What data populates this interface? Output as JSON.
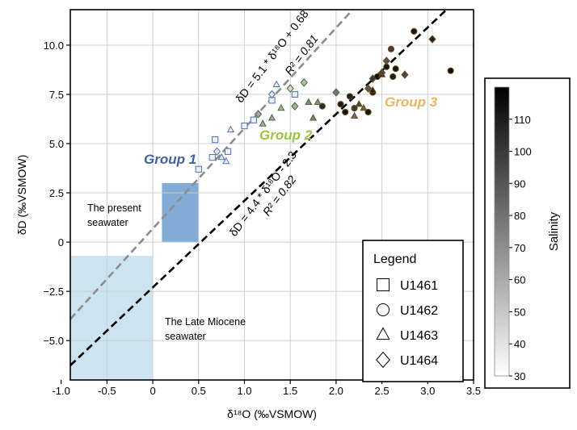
{
  "chart_data": {
    "type": "scatter",
    "xlabel": "δ¹⁸O (‰VSMOW)",
    "ylabel": "δD (‰VSMOW)",
    "xlim": [
      -0.9,
      3.5
    ],
    "ylim": [
      -7.0,
      11.8
    ],
    "x_ticks": [
      -1.0,
      -0.5,
      0.0,
      0.5,
      1.0,
      1.5,
      2.0,
      2.5,
      3.0,
      3.5
    ],
    "x_tick_labels": [
      "-1.0",
      "-0.5",
      "0",
      "0.5",
      "1.0",
      "1.5",
      "2.0",
      "2.5",
      "3.0",
      "3.5"
    ],
    "y_ticks": [
      -5.0,
      -2.5,
      0.0,
      2.5,
      5.0,
      7.5,
      10.0
    ],
    "y_tick_labels": [
      "−5.0",
      "−2.5",
      "0",
      "2.5",
      "5.0",
      "7.5",
      "10.0"
    ],
    "grid": true,
    "lines": [
      {
        "slope": 5.1,
        "intercept": 0.68,
        "style": "dashed",
        "color": "#8c8c8c",
        "equation": "δD = 5.1 * δ¹⁸O + 0.68",
        "r2": "R² = 0.81"
      },
      {
        "slope": 4.4,
        "intercept": -2.3,
        "style": "dashed",
        "color": "#000000",
        "equation": "δD = 4.4 * δ¹⁸O - 2.3",
        "r2": "R² = 0.82"
      }
    ],
    "regions": [
      {
        "label": "The present seawater",
        "label_lines": [
          "The present",
          "seawater"
        ],
        "x": [
          0.1,
          0.5
        ],
        "y": [
          0.0,
          3.0
        ],
        "color": "#7ba6d6"
      },
      {
        "label": "The Late Miocene seawater",
        "label_lines": [
          "The Late Miocene",
          "seawater"
        ],
        "x": [
          -0.9,
          0.0
        ],
        "y": [
          -7.0,
          -0.7
        ],
        "color": "#c6e0ee"
      }
    ],
    "group_labels": [
      {
        "text": "Group 1",
        "color": "#3f5fa8"
      },
      {
        "text": "Group 2",
        "color": "#9bc53d"
      },
      {
        "text": "Group 3",
        "color": "#eeb35e"
      }
    ],
    "legend": {
      "title": "Legend",
      "placement": "bottom-right",
      "entries": [
        {
          "marker": "square",
          "label": "U1461"
        },
        {
          "marker": "circle",
          "label": "U1462"
        },
        {
          "marker": "triangle",
          "label": "U1463"
        },
        {
          "marker": "diamond",
          "label": "U1464"
        }
      ]
    },
    "colorbar": {
      "label": "Salinity",
      "min": 30,
      "max": 120,
      "ticks": [
        30,
        40,
        50,
        60,
        70,
        80,
        90,
        100,
        110
      ],
      "colors": {
        "low": "#ffffff",
        "high": "#000000"
      }
    },
    "series": [
      {
        "name": "U1461",
        "marker": "square",
        "points": [
          [
            0.5,
            3.7,
            35
          ],
          [
            0.65,
            4.3,
            35
          ],
          [
            0.68,
            5.2,
            35
          ],
          [
            0.82,
            4.6,
            35
          ],
          [
            1.0,
            5.9,
            35
          ],
          [
            1.1,
            6.2,
            35
          ],
          [
            1.3,
            7.2,
            35
          ],
          [
            1.55,
            7.5,
            38
          ]
        ]
      },
      {
        "name": "U1462",
        "marker": "circle",
        "points": [
          [
            1.85,
            6.9,
            105
          ],
          [
            2.05,
            7.0,
            110
          ],
          [
            2.1,
            6.6,
            112
          ],
          [
            2.15,
            7.4,
            108
          ],
          [
            2.2,
            6.8,
            100
          ],
          [
            2.35,
            6.6,
            112
          ],
          [
            2.4,
            7.6,
            110
          ],
          [
            2.45,
            8.4,
            115
          ],
          [
            2.55,
            8.9,
            112
          ],
          [
            2.6,
            9.8,
            98
          ],
          [
            2.62,
            8.4,
            110
          ],
          [
            2.65,
            8.8,
            112
          ],
          [
            2.85,
            10.7,
            112
          ],
          [
            3.25,
            8.7,
            115
          ]
        ]
      },
      {
        "name": "U1463",
        "marker": "triangle",
        "points": [
          [
            0.75,
            4.3,
            35
          ],
          [
            0.8,
            4.1,
            35
          ],
          [
            0.85,
            5.7,
            35
          ],
          [
            1.2,
            6.0,
            60
          ],
          [
            1.3,
            6.3,
            62
          ],
          [
            1.35,
            8.0,
            35
          ],
          [
            1.4,
            6.8,
            58
          ],
          [
            1.7,
            7.1,
            72
          ],
          [
            1.75,
            6.3,
            75
          ],
          [
            1.8,
            7.1,
            70
          ],
          [
            2.2,
            6.4,
            82
          ],
          [
            2.25,
            7.0,
            95
          ],
          [
            2.3,
            6.8,
            85
          ],
          [
            2.4,
            7.7,
            110
          ],
          [
            2.5,
            8.5,
            112
          ]
        ]
      },
      {
        "name": "U1464",
        "marker": "diamond",
        "points": [
          [
            0.7,
            4.6,
            35
          ],
          [
            1.15,
            6.5,
            62
          ],
          [
            1.3,
            7.5,
            38
          ],
          [
            1.5,
            7.8,
            45
          ],
          [
            1.55,
            6.9,
            60
          ],
          [
            1.65,
            8.1,
            55
          ],
          [
            2.0,
            7.6,
            78
          ],
          [
            2.35,
            7.8,
            88
          ],
          [
            2.4,
            8.3,
            100
          ],
          [
            2.5,
            8.6,
            95
          ],
          [
            2.55,
            9.2,
            90
          ],
          [
            2.75,
            8.5,
            95
          ],
          [
            3.05,
            10.3,
            108
          ]
        ]
      }
    ]
  }
}
